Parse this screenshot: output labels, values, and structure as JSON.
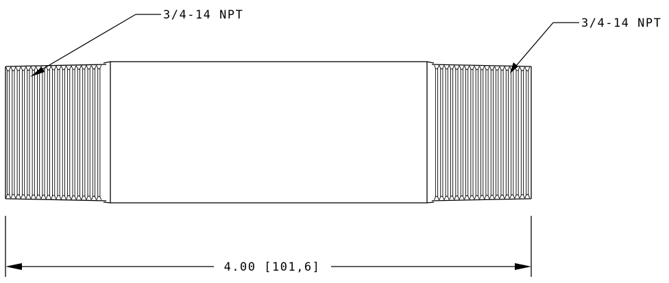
{
  "callouts": {
    "left_thread": "3/4-14 NPT",
    "right_thread": "3/4-14 NPT"
  },
  "dimension": {
    "overall_length": "4.00 [101,6]"
  }
}
